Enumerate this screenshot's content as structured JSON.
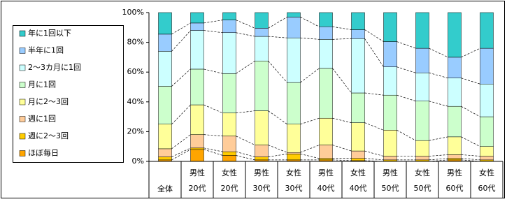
{
  "chart_data": {
    "type": "stacked-bar-100",
    "categories": [
      [
        "全体"
      ],
      [
        "男性",
        "20代"
      ],
      [
        "女性",
        "20代"
      ],
      [
        "男性",
        "30代"
      ],
      [
        "女性",
        "30代"
      ],
      [
        "男性",
        "40代"
      ],
      [
        "女性",
        "40代"
      ],
      [
        "男性",
        "50代"
      ],
      [
        "女性",
        "50代"
      ],
      [
        "男性",
        "60代"
      ],
      [
        "女性",
        "60代"
      ]
    ],
    "series": [
      {
        "name": "ほぼ毎日",
        "color": "#ffa500",
        "values": [
          1,
          8,
          4,
          1,
          1,
          1,
          0.5,
          0,
          0,
          1,
          0
        ]
      },
      {
        "name": "週に2～3回",
        "color": "#ffcc00",
        "values": [
          2,
          1,
          2.5,
          2,
          4,
          1,
          1.5,
          1,
          1,
          1,
          1
        ]
      },
      {
        "name": "週に1回",
        "color": "#ffcc99",
        "values": [
          5.5,
          9,
          10.5,
          8,
          1,
          9,
          5,
          2.5,
          2.5,
          2.5,
          2.5
        ]
      },
      {
        "name": "月に2～3回",
        "color": "#ffff99",
        "values": [
          16.5,
          20,
          15.5,
          23,
          19,
          18,
          19,
          17.5,
          10.5,
          12,
          6.5
        ]
      },
      {
        "name": "月に1回",
        "color": "#ccffcc",
        "values": [
          25.5,
          24,
          26.5,
          33.5,
          28,
          33.5,
          20,
          23.5,
          26.5,
          20.5,
          20
        ]
      },
      {
        "name": "2～3カ月に1回",
        "color": "#ccffff",
        "values": [
          23.5,
          26,
          27.5,
          16.5,
          30,
          19.5,
          36.5,
          19,
          19,
          19,
          22
        ]
      },
      {
        "name": "半年に1回",
        "color": "#99ccff",
        "values": [
          11.5,
          5,
          8.5,
          5.5,
          14,
          8.5,
          6,
          17,
          16.5,
          14,
          24
        ]
      },
      {
        "name": "年に1回以下",
        "color": "#33cccc",
        "values": [
          14.5,
          7,
          5,
          10.5,
          3,
          9.5,
          11.5,
          19.5,
          24,
          30,
          24
        ]
      }
    ],
    "ylim": [
      0,
      100
    ],
    "yticks": [
      {
        "value": 0,
        "label": "0%"
      },
      {
        "value": 20,
        "label": "20%"
      },
      {
        "value": 40,
        "label": "40%"
      },
      {
        "value": 60,
        "label": "60%"
      },
      {
        "value": 80,
        "label": "80%"
      },
      {
        "value": 100,
        "label": "100%"
      }
    ],
    "series_lines": true
  }
}
